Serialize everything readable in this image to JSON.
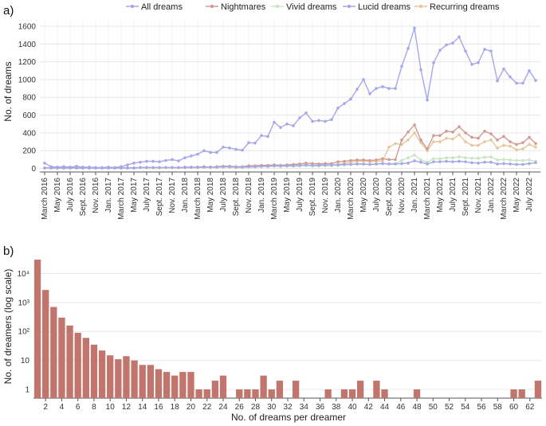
{
  "chart_data": [
    {
      "type": "line",
      "panel_label": "a)",
      "ylabel": "No. of dreams",
      "xlabel": "",
      "ylim": [
        -40,
        1680
      ],
      "yticks": [
        0,
        200,
        400,
        600,
        800,
        1000,
        1200,
        1400,
        1600
      ],
      "grid": true,
      "legend_position": "top",
      "x": [
        "Mar 2016",
        "Apr 2016",
        "May 2016",
        "Jun 2016",
        "Jul 2016",
        "Aug 2016",
        "Sep 2016",
        "Oct 2016",
        "Nov 2016",
        "Dec 2016",
        "Jan 2017",
        "Feb 2017",
        "Mar 2017",
        "Apr 2017",
        "May 2017",
        "Jun 2017",
        "Jul 2017",
        "Aug 2017",
        "Sep 2017",
        "Oct 2017",
        "Nov 2017",
        "Dec 2017",
        "Jan 2018",
        "Feb 2018",
        "Mar 2018",
        "Apr 2018",
        "May 2018",
        "Jun 2018",
        "Jul 2018",
        "Aug 2018",
        "Sep 2018",
        "Oct 2018",
        "Nov 2018",
        "Dec 2018",
        "Jan 2019",
        "Feb 2019",
        "Mar 2019",
        "Apr 2019",
        "May 2019",
        "Jun 2019",
        "Jul 2019",
        "Aug 2019",
        "Sep 2019",
        "Oct 2019",
        "Nov 2019",
        "Dec 2019",
        "Jan 2020",
        "Feb 2020",
        "Mar 2020",
        "Apr 2020",
        "May 2020",
        "Jun 2020",
        "Jul 2020",
        "Aug 2020",
        "Sep 2020",
        "Oct 2020",
        "Nov 2020",
        "Dec 2020",
        "Jan 2021",
        "Feb 2021",
        "Mar 2021",
        "Apr 2021",
        "May 2021",
        "Jun 2021",
        "Jul 2021",
        "Aug 2021",
        "Sep 2021",
        "Oct 2021",
        "Nov 2021",
        "Dec 2021",
        "Jan 2022",
        "Feb 2022",
        "Mar 2022",
        "Apr 2022",
        "May 2022",
        "Jun 2022",
        "Jul 2022",
        "Aug 2022"
      ],
      "tick_labels": [
        "March 2016",
        "May 2016",
        "July 2016",
        "Sept. 2016",
        "Nov. 2016",
        "Jan. 2017",
        "March 2017",
        "May 2017",
        "July 2017",
        "Sept. 2017",
        "Nov. 2017",
        "Jan. 2018",
        "March 2018",
        "May 2018",
        "July 2018",
        "Sept. 2018",
        "Nov. 2018",
        "Jan. 2019",
        "March 2019",
        "May 2019",
        "July 2019",
        "Sept. 2019",
        "Nov. 2019",
        "Jan. 2020",
        "March 2020",
        "May 2020",
        "July 2020",
        "Sept. 2020",
        "Nov. 2020",
        "Jan. 2021",
        "March 2021",
        "May 2021",
        "July 2021",
        "Sept. 2021",
        "Nov. 2021",
        "Jan. 2022",
        "March 2022",
        "May 2022",
        "July 2022"
      ],
      "series": [
        {
          "name": "All dreams",
          "color": "#a5a7e8",
          "values": [
            60,
            20,
            15,
            20,
            15,
            25,
            15,
            15,
            10,
            10,
            15,
            10,
            20,
            40,
            60,
            70,
            80,
            80,
            75,
            90,
            100,
            85,
            120,
            140,
            160,
            200,
            180,
            180,
            240,
            230,
            215,
            205,
            290,
            285,
            370,
            360,
            520,
            460,
            500,
            480,
            570,
            625,
            530,
            540,
            530,
            550,
            680,
            730,
            780,
            890,
            1000,
            840,
            900,
            920,
            900,
            900,
            1150,
            1350,
            1580,
            1110,
            770,
            1190,
            1330,
            1390,
            1410,
            1480,
            1320,
            1170,
            1190,
            1340,
            1320,
            985,
            1120,
            1030,
            960,
            960,
            1100,
            990
          ]
        },
        {
          "name": "Nightmares",
          "color": "#d29a92",
          "values": [
            5,
            5,
            5,
            5,
            8,
            5,
            5,
            5,
            5,
            5,
            5,
            5,
            5,
            5,
            8,
            10,
            10,
            10,
            8,
            10,
            10,
            8,
            15,
            15,
            15,
            20,
            15,
            20,
            25,
            25,
            20,
            20,
            30,
            30,
            35,
            35,
            40,
            35,
            40,
            45,
            50,
            60,
            55,
            50,
            55,
            55,
            75,
            80,
            90,
            95,
            95,
            90,
            95,
            110,
            100,
            100,
            320,
            410,
            490,
            320,
            220,
            370,
            370,
            420,
            410,
            470,
            400,
            350,
            340,
            420,
            390,
            320,
            360,
            300,
            270,
            290,
            350,
            280
          ]
        },
        {
          "name": "Vivid dreams",
          "color": "#c8e4c2",
          "values": [
            5,
            3,
            3,
            3,
            3,
            3,
            3,
            3,
            3,
            3,
            3,
            3,
            3,
            5,
            5,
            8,
            8,
            8,
            8,
            10,
            10,
            8,
            10,
            10,
            10,
            12,
            10,
            12,
            15,
            15,
            12,
            12,
            15,
            15,
            20,
            20,
            25,
            20,
            25,
            25,
            25,
            30,
            25,
            25,
            30,
            30,
            35,
            40,
            45,
            50,
            50,
            45,
            50,
            55,
            55,
            55,
            90,
            120,
            150,
            95,
            70,
            110,
            110,
            120,
            120,
            130,
            120,
            115,
            115,
            125,
            130,
            95,
            100,
            95,
            90,
            90,
            95,
            80
          ]
        },
        {
          "name": "Lucid dreams",
          "color": "#a5a7e8",
          "values": [
            5,
            5,
            5,
            5,
            5,
            5,
            5,
            5,
            5,
            5,
            5,
            5,
            5,
            5,
            5,
            10,
            10,
            10,
            10,
            10,
            10,
            10,
            10,
            12,
            12,
            15,
            15,
            15,
            20,
            20,
            15,
            15,
            20,
            20,
            25,
            25,
            30,
            30,
            30,
            30,
            35,
            40,
            35,
            35,
            40,
            40,
            40,
            45,
            45,
            50,
            50,
            45,
            50,
            55,
            50,
            50,
            55,
            60,
            85,
            70,
            50,
            75,
            75,
            80,
            75,
            80,
            75,
            65,
            60,
            70,
            70,
            50,
            55,
            50,
            45,
            45,
            55,
            65
          ]
        },
        {
          "name": "Recurring dreams",
          "color": "#e8c69b",
          "values": [
            5,
            5,
            5,
            5,
            5,
            5,
            5,
            5,
            5,
            5,
            5,
            5,
            5,
            5,
            5,
            8,
            8,
            8,
            8,
            10,
            10,
            8,
            10,
            10,
            10,
            12,
            10,
            12,
            15,
            15,
            12,
            12,
            15,
            15,
            20,
            20,
            25,
            20,
            25,
            25,
            30,
            35,
            30,
            30,
            35,
            35,
            45,
            55,
            70,
            80,
            85,
            75,
            80,
            85,
            240,
            280,
            270,
            320,
            400,
            290,
            200,
            300,
            300,
            340,
            330,
            380,
            300,
            260,
            260,
            300,
            320,
            230,
            260,
            250,
            210,
            220,
            270,
            240
          ]
        }
      ]
    },
    {
      "type": "bar",
      "panel_label": "b)",
      "xlabel": "No. of dreams per dreamer",
      "ylabel": "No. of dreamers (log scale)",
      "yscale": "log",
      "ylim": [
        0.5,
        50000
      ],
      "ytick_labels": [
        "1",
        "10",
        "10²",
        "10³",
        "10⁴"
      ],
      "yticks": [
        1,
        10,
        100,
        1000,
        10000
      ],
      "xticks": [
        2,
        4,
        6,
        8,
        10,
        12,
        14,
        16,
        18,
        20,
        22,
        24,
        26,
        28,
        30,
        32,
        34,
        36,
        38,
        40,
        42,
        44,
        46,
        48,
        50,
        52,
        54,
        56,
        58,
        60,
        62
      ],
      "bar_color": "#c1756c",
      "x": [
        1,
        2,
        3,
        4,
        5,
        6,
        7,
        8,
        9,
        10,
        11,
        12,
        13,
        14,
        15,
        16,
        17,
        18,
        19,
        20,
        21,
        22,
        23,
        24,
        25,
        26,
        27,
        28,
        29,
        30,
        31,
        32,
        33,
        34,
        35,
        36,
        37,
        38,
        39,
        40,
        41,
        42,
        43,
        44,
        45,
        46,
        47,
        48,
        49,
        50,
        51,
        52,
        53,
        54,
        55,
        56,
        57,
        58,
        59,
        60,
        61,
        62,
        63
      ],
      "values": [
        30000,
        2700,
        700,
        300,
        160,
        90,
        60,
        35,
        22,
        15,
        11,
        14,
        10,
        7,
        7,
        5,
        4,
        3,
        4,
        4,
        1,
        1,
        2,
        3,
        0,
        1,
        1,
        1,
        3,
        1,
        2,
        0,
        2,
        0,
        0,
        0,
        1,
        0,
        1,
        1,
        2,
        0,
        2,
        1,
        0,
        0,
        0,
        1,
        0,
        0,
        0,
        0,
        0,
        0,
        0,
        0,
        0,
        0,
        0,
        1,
        1,
        0,
        2
      ]
    }
  ]
}
